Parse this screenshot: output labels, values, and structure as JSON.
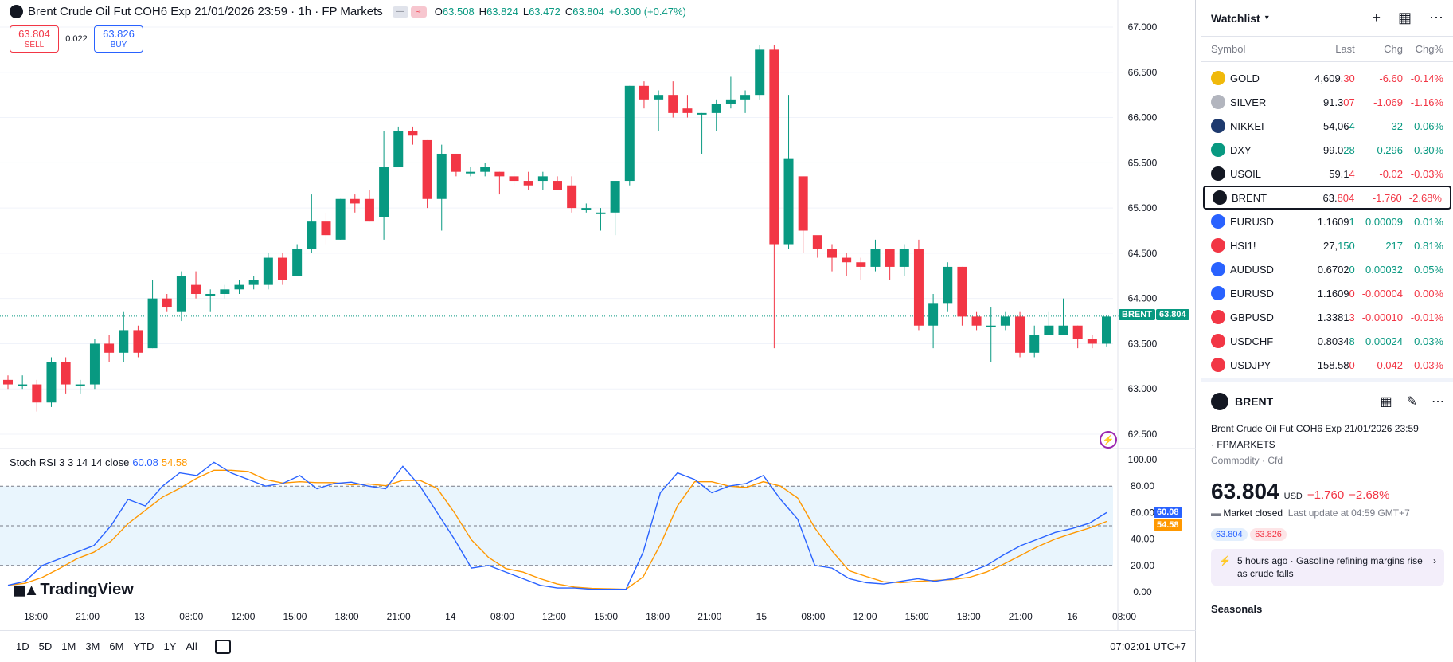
{
  "header": {
    "title": "Brent Crude Oil Fut COH6 Exp 21/01/2026 23:59 · 1h · FP Markets",
    "toggle1": "—",
    "toggle2": "≈",
    "o_label": "O",
    "o": "63.508",
    "h_label": "H",
    "h": "63.824",
    "l_label": "L",
    "l": "63.472",
    "c_label": "C",
    "c": "63.804",
    "change": "+0.300 (+0.47%)"
  },
  "trade": {
    "sell_price": "63.804",
    "sell_label": "SELL",
    "spread": "0.022",
    "buy_price": "63.826",
    "buy_label": "BUY"
  },
  "price_axis": [
    "67.000",
    "66.500",
    "66.000",
    "65.500",
    "65.000",
    "64.500",
    "64.000",
    "63.500",
    "63.000",
    "62.500"
  ],
  "price_tag": {
    "label": "BRENT",
    "value": "63.804"
  },
  "indicator": {
    "label": "Stoch RSI 3 3 14 14 close",
    "k": "60.08",
    "d": "54.58",
    "axis": [
      "100.00",
      "80.00",
      "60.00",
      "40.00",
      "20.00",
      "0.00"
    ]
  },
  "time_axis": [
    "18:00",
    "21:00",
    "13",
    "08:00",
    "12:00",
    "15:00",
    "18:00",
    "21:00",
    "14",
    "08:00",
    "12:00",
    "15:00",
    "18:00",
    "21:00",
    "15",
    "08:00",
    "12:00",
    "15:00",
    "18:00",
    "21:00",
    "16",
    "08:00"
  ],
  "logo": "TradingView",
  "bottom": {
    "ranges": [
      "1D",
      "5D",
      "1M",
      "3M",
      "6M",
      "YTD",
      "1Y",
      "All"
    ],
    "clock": "07:02:01 UTC+7"
  },
  "watchlist": {
    "title": "Watchlist",
    "cols": [
      "Symbol",
      "Last",
      "Chg",
      "Chg%"
    ],
    "rows": [
      {
        "sym": "GOLD",
        "last_a": "4,609.",
        "last_b": "30",
        "chg": "-6.60",
        "pct": "-0.14%",
        "dir": "neg",
        "color": "#f0b90b"
      },
      {
        "sym": "SILVER",
        "last_a": "91.3",
        "last_b": "07",
        "chg": "-1.069",
        "pct": "-1.16%",
        "dir": "neg",
        "color": "#b2b5be"
      },
      {
        "sym": "NIKKEI",
        "last_a": "54,06",
        "last_b": "4",
        "chg": "32",
        "pct": "0.06%",
        "dir": "pos",
        "color": "#1e3a6e"
      },
      {
        "sym": "DXY",
        "last_a": "99.0",
        "last_b": "28",
        "chg": "0.296",
        "pct": "0.30%",
        "dir": "pos",
        "color": "#089981"
      },
      {
        "sym": "USOIL",
        "last_a": "59.1",
        "last_b": "4",
        "chg": "-0.02",
        "pct": "-0.03%",
        "dir": "neg",
        "color": "#131722"
      },
      {
        "sym": "BRENT",
        "last_a": "63.",
        "last_b": "804",
        "chg": "-1.760",
        "pct": "-2.68%",
        "dir": "neg",
        "color": "#131722"
      },
      {
        "sym": "EURUSD",
        "last_a": "1.1609",
        "last_b": "1",
        "chg": "0.00009",
        "pct": "0.01%",
        "dir": "pos",
        "color": "#2962ff"
      },
      {
        "sym": "HSI1!",
        "last_a": "27,",
        "last_b": "150",
        "chg": "217",
        "pct": "0.81%",
        "dir": "pos",
        "color": "#f23645"
      },
      {
        "sym": "AUDUSD",
        "last_a": "0.6702",
        "last_b": "0",
        "chg": "0.00032",
        "pct": "0.05%",
        "dir": "pos",
        "color": "#2962ff"
      },
      {
        "sym": "EURUSD",
        "last_a": "1.1609",
        "last_b": "0",
        "chg": "-0.00004",
        "pct": "0.00%",
        "dir": "neg",
        "color": "#2962ff"
      },
      {
        "sym": "GBPUSD",
        "last_a": "1.3381",
        "last_b": "3",
        "chg": "-0.00010",
        "pct": "-0.01%",
        "dir": "neg",
        "color": "#f23645"
      },
      {
        "sym": "USDCHF",
        "last_a": "0.8034",
        "last_b": "8",
        "chg": "0.00024",
        "pct": "0.03%",
        "dir": "pos",
        "color": "#f23645"
      },
      {
        "sym": "USDJPY",
        "last_a": "158.58",
        "last_b": "0",
        "chg": "-0.042",
        "pct": "-0.03%",
        "dir": "neg",
        "color": "#f23645"
      }
    ]
  },
  "detail": {
    "symbol": "BRENT",
    "name": "Brent Crude Oil Fut COH6 Exp 21/01/2026 23:59",
    "exchange": "FPMARKETS",
    "category": "Commodity · Cfd",
    "price": "63.804",
    "currency": "USD",
    "change": "−1.760",
    "pct": "−2.68%",
    "status": "Market closed",
    "update": "Last update at 04:59 GMT+7",
    "bid": "63.804",
    "ask": "63.826",
    "news_ago": "5 hours ago",
    "news_text": "Gasoline refining margins rise as crude falls",
    "seasonals": "Seasonals"
  },
  "candles": [
    [
      63.1,
      63.05,
      63.15,
      63.0
    ],
    [
      63.05,
      63.05,
      63.15,
      63.0
    ],
    [
      63.05,
      62.85,
      63.1,
      62.75
    ],
    [
      62.85,
      63.3,
      63.35,
      62.8
    ],
    [
      63.3,
      63.05,
      63.35,
      62.95
    ],
    [
      63.05,
      63.05,
      63.1,
      62.95
    ],
    [
      63.05,
      63.5,
      63.55,
      63.0
    ],
    [
      63.5,
      63.4,
      63.6,
      63.3
    ],
    [
      63.4,
      63.65,
      63.85,
      63.3
    ],
    [
      63.65,
      63.4,
      63.7,
      63.35
    ],
    [
      63.45,
      64.0,
      64.2,
      63.45
    ],
    [
      64.0,
      63.9,
      64.05,
      63.85
    ],
    [
      63.85,
      64.25,
      64.3,
      63.75
    ],
    [
      64.15,
      64.05,
      64.3,
      64.0
    ],
    [
      64.05,
      64.05,
      64.1,
      63.85
    ],
    [
      64.05,
      64.1,
      64.15,
      64.0
    ],
    [
      64.1,
      64.15,
      64.2,
      64.05
    ],
    [
      64.15,
      64.2,
      64.25,
      64.1
    ],
    [
      64.15,
      64.45,
      64.5,
      64.1
    ],
    [
      64.45,
      64.2,
      64.5,
      64.15
    ],
    [
      64.25,
      64.55,
      64.6,
      64.25
    ],
    [
      64.55,
      64.85,
      65.15,
      64.5
    ],
    [
      64.85,
      64.7,
      64.95,
      64.6
    ],
    [
      64.65,
      65.1,
      65.1,
      64.65
    ],
    [
      65.1,
      65.05,
      65.15,
      64.95
    ],
    [
      65.1,
      64.85,
      65.2,
      64.85
    ],
    [
      64.9,
      65.45,
      65.85,
      64.65
    ],
    [
      65.45,
      65.85,
      65.9,
      65.45
    ],
    [
      65.85,
      65.8,
      65.9,
      65.7
    ],
    [
      65.75,
      65.1,
      65.75,
      65.0
    ],
    [
      65.1,
      65.6,
      65.7,
      64.75
    ],
    [
      65.6,
      65.4,
      65.6,
      65.35
    ],
    [
      65.4,
      65.4,
      65.45,
      65.35
    ],
    [
      65.4,
      65.45,
      65.5,
      65.35
    ],
    [
      65.4,
      65.35,
      65.4,
      65.15
    ],
    [
      65.35,
      65.3,
      65.4,
      65.25
    ],
    [
      65.3,
      65.25,
      65.4,
      65.2
    ],
    [
      65.3,
      65.35,
      65.4,
      65.2
    ],
    [
      65.3,
      65.2,
      65.35,
      65.2
    ],
    [
      65.25,
      65.0,
      65.35,
      64.95
    ],
    [
      65.0,
      65.0,
      65.05,
      64.95
    ],
    [
      64.95,
      64.95,
      65.0,
      64.75
    ],
    [
      64.95,
      65.3,
      65.3,
      64.7
    ],
    [
      65.3,
      66.35,
      66.35,
      65.25
    ],
    [
      66.35,
      66.2,
      66.4,
      66.1
    ],
    [
      66.2,
      66.25,
      66.3,
      65.85
    ],
    [
      66.25,
      66.05,
      66.4,
      66.0
    ],
    [
      66.1,
      66.05,
      66.25,
      66.0
    ],
    [
      66.05,
      66.05,
      66.05,
      65.6
    ],
    [
      66.05,
      66.15,
      66.2,
      65.85
    ],
    [
      66.15,
      66.2,
      66.45,
      66.1
    ],
    [
      66.2,
      66.25,
      66.3,
      66.05
    ],
    [
      66.25,
      66.75,
      66.8,
      66.2
    ],
    [
      66.75,
      64.6,
      66.8,
      63.45
    ],
    [
      64.6,
      65.55,
      66.25,
      64.55
    ],
    [
      65.35,
      64.75,
      65.35,
      64.5
    ],
    [
      64.7,
      64.55,
      64.65,
      64.45
    ],
    [
      64.55,
      64.45,
      64.6,
      64.3
    ],
    [
      64.45,
      64.4,
      64.5,
      64.25
    ],
    [
      64.4,
      64.35,
      64.45,
      64.2
    ],
    [
      64.35,
      64.55,
      64.65,
      64.3
    ],
    [
      64.55,
      64.35,
      64.55,
      64.2
    ],
    [
      64.35,
      64.55,
      64.6,
      64.25
    ],
    [
      64.55,
      63.7,
      64.65,
      63.65
    ],
    [
      63.7,
      63.95,
      64.05,
      63.45
    ],
    [
      63.95,
      64.35,
      64.4,
      63.85
    ],
    [
      64.35,
      63.8,
      64.35,
      63.7
    ],
    [
      63.8,
      63.7,
      63.85,
      63.65
    ],
    [
      63.7,
      63.7,
      63.9,
      63.3
    ],
    [
      63.7,
      63.8,
      63.85,
      63.65
    ],
    [
      63.8,
      63.4,
      63.85,
      63.35
    ],
    [
      63.4,
      63.6,
      63.7,
      63.35
    ],
    [
      63.6,
      63.7,
      63.85,
      63.6
    ],
    [
      63.6,
      63.7,
      64.0,
      63.6
    ],
    [
      63.7,
      63.55,
      63.7,
      63.45
    ],
    [
      63.55,
      63.5,
      63.6,
      63.45
    ],
    [
      63.5,
      63.8,
      63.82,
      63.47
    ]
  ],
  "stoch_k": [
    5,
    8,
    20,
    25,
    30,
    35,
    50,
    70,
    65,
    80,
    90,
    88,
    98,
    90,
    85,
    80,
    82,
    88,
    78,
    82,
    83,
    80,
    78,
    95,
    80,
    60,
    40,
    18,
    20,
    15,
    10,
    5,
    3,
    3,
    2,
    2,
    2,
    30,
    75,
    90,
    85,
    75,
    80,
    82,
    88,
    70,
    55,
    20,
    18,
    10,
    7,
    6,
    8,
    10,
    8,
    10,
    15,
    20,
    28,
    35,
    40,
    45,
    48,
    52,
    60
  ]
}
